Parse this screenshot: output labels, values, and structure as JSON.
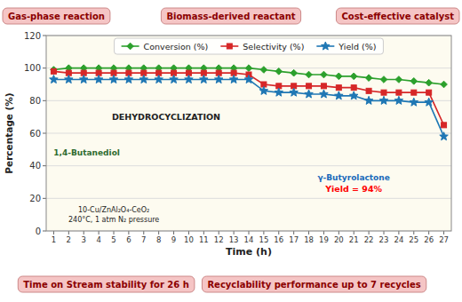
{
  "chart_data": {
    "type": "line",
    "xlabel": "Time (h)",
    "ylabel": "Percentage (%)",
    "x": [
      1,
      2,
      3,
      4,
      5,
      6,
      7,
      8,
      9,
      10,
      11,
      12,
      13,
      14,
      15,
      16,
      17,
      18,
      19,
      20,
      21,
      22,
      23,
      24,
      25,
      26,
      27
    ],
    "xlim": [
      0.5,
      27.5
    ],
    "xticks": [
      1,
      2,
      3,
      4,
      5,
      6,
      7,
      8,
      9,
      10,
      11,
      12,
      13,
      14,
      15,
      16,
      17,
      18,
      19,
      20,
      21,
      22,
      23,
      24,
      25,
      26,
      27
    ],
    "ylim": [
      0,
      120
    ],
    "yticks": [
      0,
      20,
      40,
      60,
      80,
      100,
      120
    ],
    "grid": true,
    "legend": "top",
    "series": [
      {
        "name": "Conversion (%)",
        "color": "#2ca02c",
        "marker": "diamond",
        "values": [
          99,
          100,
          100,
          100,
          100,
          100,
          100,
          100,
          100,
          100,
          100,
          100,
          100,
          100,
          99,
          98,
          97,
          96,
          96,
          95,
          95,
          94,
          93,
          93,
          92,
          91,
          90
        ]
      },
      {
        "name": "Selectivity (%)",
        "color": "#d62728",
        "marker": "square",
        "values": [
          98,
          97,
          97,
          97,
          97,
          97,
          97,
          97,
          97,
          97,
          97,
          97,
          97,
          96,
          90,
          89,
          89,
          89,
          89,
          88,
          88,
          86,
          85,
          85,
          85,
          85,
          65
        ]
      },
      {
        "name": "Yield (%)",
        "color": "#1f77b4",
        "marker": "star",
        "values": [
          93,
          93,
          93,
          93,
          93,
          93,
          93,
          93,
          93,
          93,
          93,
          93,
          93,
          93,
          86,
          85,
          85,
          84,
          84,
          83,
          83,
          80,
          80,
          80,
          79,
          79,
          58
        ]
      }
    ],
    "annotations": [
      "Gas-phase reaction",
      "Biomass-derived reactant",
      "Cost-effective catalyst",
      "Time on Stream stability for 26 h",
      "Recyclability performance up to 7 recycles",
      "DEHYDROCYCLIZATION",
      "10-Cu/ZnAl₂O₄-CeO₂\n240°C, 1 atm  N₂ pressure",
      "γ-Butyrolactone",
      "Yield = 94%",
      "1,4-Butanediol"
    ]
  }
}
